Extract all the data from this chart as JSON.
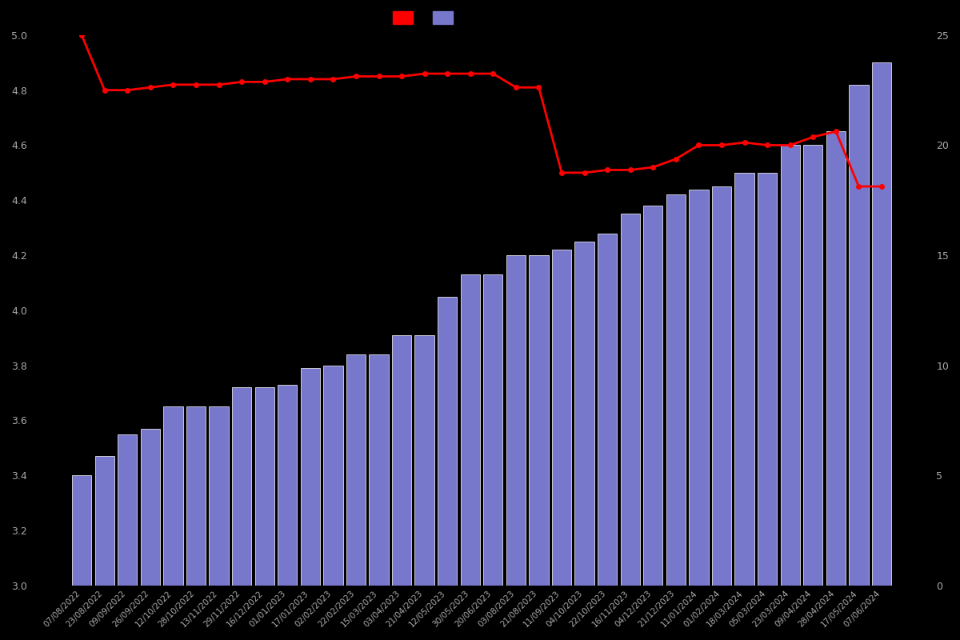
{
  "background_color": "#000000",
  "text_color": "#aaaaaa",
  "bar_color": "#7777cc",
  "bar_edgecolor": "#ffffff",
  "line_color": "#ff0000",
  "marker_color": "#ff0000",
  "categories": [
    "07/08/2022",
    "23/08/2022",
    "09/09/2022",
    "26/09/2022",
    "12/10/2022",
    "28/10/2022",
    "13/11/2022",
    "29/11/2022",
    "16/12/2022",
    "01/01/2023",
    "17/01/2023",
    "02/02/2023",
    "22/02/2023",
    "15/03/2023",
    "03/04/2023",
    "21/04/2023",
    "12/05/2023",
    "30/05/2023",
    "20/06/2023",
    "03/08/2023",
    "21/08/2023",
    "11/09/2023",
    "04/10/2023",
    "22/10/2023",
    "16/11/2023",
    "04/12/2023",
    "21/12/2023",
    "11/01/2024",
    "01/02/2024",
    "18/03/2024",
    "05/03/2024",
    "23/03/2024",
    "09/04/2024",
    "28/04/2024",
    "17/05/2024",
    "07/06/2024"
  ],
  "bar_values": [
    3.4,
    3.47,
    3.55,
    3.57,
    3.65,
    3.65,
    3.65,
    3.72,
    3.72,
    3.73,
    3.79,
    3.8,
    3.84,
    3.84,
    3.91,
    3.91,
    4.05,
    4.13,
    4.13,
    4.2,
    4.2,
    4.22,
    4.25,
    4.28,
    4.35,
    4.38,
    4.42,
    4.44,
    4.45,
    4.5,
    4.5,
    4.6,
    4.6,
    4.65,
    4.82,
    4.9
  ],
  "line_values": [
    5.0,
    4.8,
    4.8,
    4.81,
    4.82,
    4.82,
    4.82,
    4.83,
    4.83,
    4.84,
    4.84,
    4.84,
    4.85,
    4.85,
    4.85,
    4.86,
    4.86,
    4.86,
    4.86,
    4.81,
    4.81,
    4.5,
    4.5,
    4.51,
    4.51,
    4.52,
    4.55,
    4.6,
    4.6,
    4.61,
    4.6,
    4.6,
    4.63,
    4.65,
    4.45,
    4.45
  ],
  "ylim_left": [
    3.0,
    5.0
  ],
  "ylim_right": [
    0,
    25
  ],
  "yticks_left": [
    3.0,
    3.2,
    3.4,
    3.6,
    3.8,
    4.0,
    4.2,
    4.4,
    4.6,
    4.8,
    5.0
  ],
  "yticks_right": [
    0,
    5,
    10,
    15,
    20,
    25
  ],
  "figsize": [
    12,
    8
  ],
  "dpi": 100
}
